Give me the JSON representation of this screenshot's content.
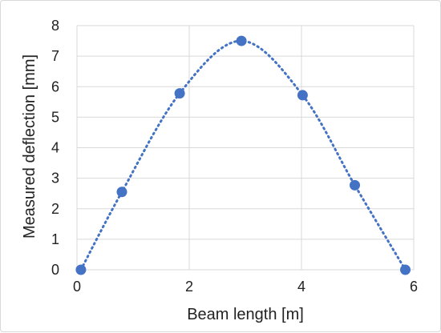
{
  "chart_data": {
    "type": "scatter",
    "xlabel": "Beam length [m]",
    "ylabel": "Measured deflection [mm]",
    "xlim": [
      0,
      6
    ],
    "ylim": [
      0,
      8
    ],
    "x_ticks": [
      0,
      2,
      4,
      6
    ],
    "y_ticks": [
      0,
      1,
      2,
      3,
      4,
      5,
      6,
      7,
      8
    ],
    "grid": true,
    "trendline": "smooth dotted curve through points",
    "colors": {
      "series": "#4472c4",
      "grid": "#d9d9d9"
    },
    "points": [
      {
        "x": 0.07,
        "y": 0.0
      },
      {
        "x": 0.8,
        "y": 2.55
      },
      {
        "x": 1.83,
        "y": 5.78
      },
      {
        "x": 2.93,
        "y": 7.5
      },
      {
        "x": 4.02,
        "y": 5.72
      },
      {
        "x": 4.95,
        "y": 2.77
      },
      {
        "x": 5.85,
        "y": 0.0
      }
    ]
  }
}
